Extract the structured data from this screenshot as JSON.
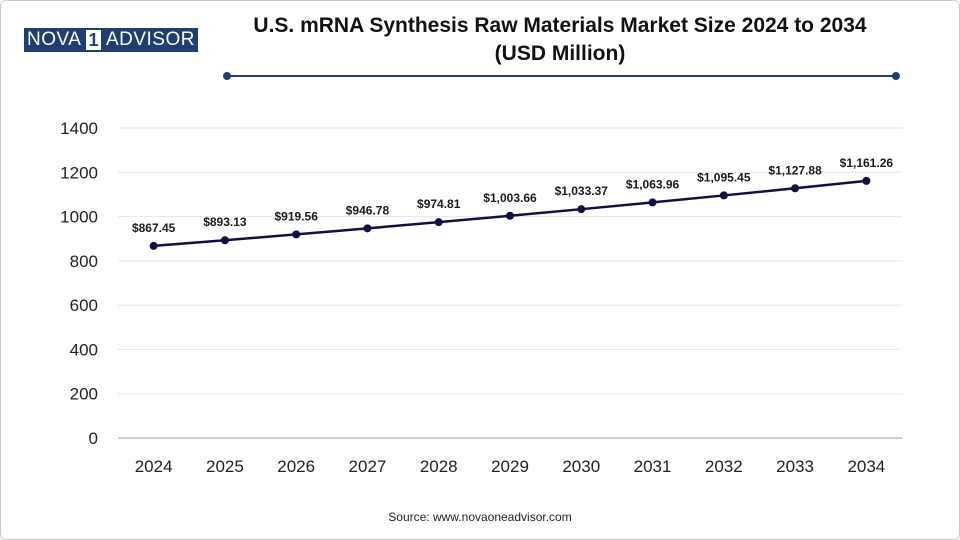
{
  "logo": {
    "part1": "NOVA",
    "part2": "1",
    "part3": "ADVISOR"
  },
  "colors": {
    "line": "#0f0f4a",
    "brand": "#1f3f73",
    "grid": "#e6e6e6"
  },
  "source": "Source: www.novaoneadvisor.com",
  "chart_data": {
    "type": "line",
    "title": "U.S. mRNA Synthesis Raw Materials Market Size 2024 to 2034 (USD Million)",
    "title_lines": [
      "U.S. mRNA Synthesis Raw Materials Market Size 2024 to 2034",
      "(USD Million)"
    ],
    "xlabel": "",
    "ylabel": "",
    "categories": [
      "2024",
      "2025",
      "2026",
      "2027",
      "2028",
      "2029",
      "2030",
      "2031",
      "2032",
      "2033",
      "2034"
    ],
    "values": [
      867.45,
      893.13,
      919.56,
      946.78,
      974.81,
      1003.66,
      1033.37,
      1063.96,
      1095.45,
      1127.88,
      1161.26
    ],
    "value_labels": [
      "$867.45",
      "$893.13",
      "$919.56",
      "$946.78",
      "$974.81",
      "$1,003.66",
      "$1,033.37",
      "$1,063.96",
      "$1,095.45",
      "$1,127.88",
      "$1,161.26"
    ],
    "ylim": [
      0,
      1400
    ],
    "yticks": [
      0,
      200,
      400,
      600,
      800,
      1000,
      1200,
      1400
    ],
    "grid": true,
    "legend": "none"
  }
}
